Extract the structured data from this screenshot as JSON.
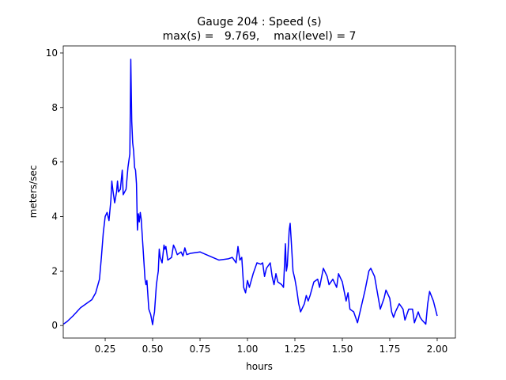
{
  "chart_data": {
    "type": "line",
    "title": [
      "Gauge 204 : Speed (s)",
      "max(s) =   9.769,    max(level) = 7"
    ],
    "xlabel": "hours",
    "ylabel": "meters/sec",
    "xlim": [
      0.029,
      2.096
    ],
    "ylim": [
      -0.46,
      10.26
    ],
    "xticks": [
      0.25,
      {
        "value": 0.5,
        "label": "0.50"
      },
      0.75,
      {
        "value": 1,
        "label": "1.00"
      },
      1.25,
      {
        "value": 1.5,
        "label": "1.50"
      },
      1.75,
      {
        "value": 2,
        "label": "2.00"
      }
    ],
    "yticks": [
      0,
      2,
      4,
      6,
      8,
      10
    ],
    "grid": false,
    "series": [
      {
        "color": "#0000ff",
        "x": [
          0.03,
          0.05,
          0.08,
          0.1,
          0.12,
          0.15,
          0.18,
          0.2,
          0.22,
          0.23,
          0.24,
          0.25,
          0.26,
          0.27,
          0.28,
          0.285,
          0.29,
          0.3,
          0.31,
          0.315,
          0.32,
          0.33,
          0.34,
          0.345,
          0.36,
          0.37,
          0.38,
          0.385,
          0.39,
          0.395,
          0.4,
          0.405,
          0.41,
          0.415,
          0.42,
          0.425,
          0.43,
          0.435,
          0.44,
          0.45,
          0.46,
          0.465,
          0.47,
          0.48,
          0.49,
          0.5,
          0.505,
          0.51,
          0.52,
          0.53,
          0.535,
          0.54,
          0.55,
          0.56,
          0.565,
          0.57,
          0.58,
          0.59,
          0.6,
          0.61,
          0.62,
          0.63,
          0.65,
          0.66,
          0.67,
          0.68,
          0.7,
          0.75,
          0.8,
          0.85,
          0.9,
          0.92,
          0.94,
          0.95,
          0.96,
          0.97,
          0.98,
          0.99,
          1.0,
          1.01,
          1.03,
          1.05,
          1.07,
          1.08,
          1.09,
          1.1,
          1.12,
          1.13,
          1.14,
          1.15,
          1.16,
          1.18,
          1.19,
          1.2,
          1.205,
          1.21,
          1.22,
          1.225,
          1.23,
          1.24,
          1.25,
          1.26,
          1.27,
          1.28,
          1.3,
          1.31,
          1.32,
          1.33,
          1.35,
          1.37,
          1.38,
          1.4,
          1.42,
          1.43,
          1.45,
          1.47,
          1.48,
          1.5,
          1.52,
          1.53,
          1.54,
          1.56,
          1.58,
          1.6,
          1.62,
          1.64,
          1.65,
          1.67,
          1.69,
          1.7,
          1.72,
          1.73,
          1.75,
          1.76,
          1.77,
          1.78,
          1.8,
          1.82,
          1.83,
          1.84,
          1.85,
          1.87,
          1.88,
          1.9,
          1.91,
          1.92,
          1.94,
          1.95,
          1.96,
          1.98,
          2.0
        ],
        "values": [
          0.05,
          0.15,
          0.35,
          0.5,
          0.65,
          0.8,
          0.95,
          1.2,
          1.7,
          2.5,
          3.4,
          4.0,
          4.15,
          3.85,
          4.6,
          5.3,
          5.0,
          4.5,
          4.9,
          5.3,
          4.9,
          5.0,
          5.7,
          4.8,
          5.0,
          5.8,
          6.3,
          9.769,
          7.5,
          6.7,
          6.4,
          5.8,
          5.7,
          5.2,
          3.5,
          4.1,
          3.8,
          4.15,
          3.9,
          2.8,
          1.7,
          1.5,
          1.65,
          0.6,
          0.4,
          0.03,
          0.3,
          0.5,
          1.5,
          2.0,
          2.8,
          2.5,
          2.3,
          2.95,
          2.8,
          2.9,
          2.4,
          2.45,
          2.5,
          2.95,
          2.8,
          2.6,
          2.7,
          2.55,
          2.85,
          2.6,
          2.65,
          2.7,
          2.55,
          2.4,
          2.45,
          2.5,
          2.3,
          2.9,
          2.4,
          2.5,
          1.4,
          1.2,
          1.65,
          1.4,
          1.9,
          2.3,
          2.25,
          2.3,
          1.8,
          2.1,
          2.3,
          1.8,
          1.5,
          1.9,
          1.6,
          1.5,
          1.4,
          3.0,
          2.0,
          2.2,
          3.5,
          3.75,
          3.2,
          2.0,
          1.7,
          1.3,
          0.8,
          0.5,
          0.8,
          1.1,
          0.9,
          1.1,
          1.6,
          1.7,
          1.4,
          2.1,
          1.8,
          1.5,
          1.7,
          1.4,
          1.9,
          1.6,
          0.9,
          1.2,
          0.6,
          0.5,
          0.1,
          0.7,
          1.3,
          2.0,
          2.1,
          1.8,
          1.0,
          0.6,
          1.0,
          1.3,
          1.0,
          0.5,
          0.3,
          0.5,
          0.8,
          0.6,
          0.2,
          0.4,
          0.6,
          0.6,
          0.1,
          0.5,
          0.3,
          0.2,
          0.05,
          0.8,
          1.25,
          0.9,
          0.35
        ]
      }
    ]
  }
}
